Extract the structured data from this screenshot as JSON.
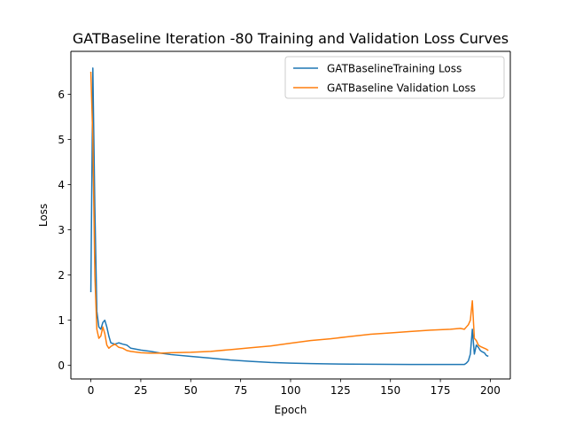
{
  "chart_data": {
    "type": "line",
    "title": "GATBaseline Iteration -80 Training and Validation Loss Curves",
    "xlabel": "Epoch",
    "ylabel": "Loss",
    "xlim": [
      -10,
      210
    ],
    "ylim": [
      -0.3,
      6.95
    ],
    "xticks": [
      0,
      25,
      50,
      75,
      100,
      125,
      150,
      175,
      200
    ],
    "yticks": [
      0,
      1,
      2,
      3,
      4,
      5,
      6
    ],
    "grid": false,
    "legend_position": "top-right",
    "series": [
      {
        "name": "GATBaselineTraining Loss",
        "color": "#1f77b4",
        "x": [
          0,
          1,
          2,
          3,
          4,
          5,
          6,
          7,
          8,
          9,
          10,
          12,
          14,
          16,
          18,
          20,
          25,
          30,
          35,
          40,
          50,
          60,
          70,
          80,
          90,
          100,
          110,
          120,
          130,
          140,
          150,
          160,
          170,
          180,
          187,
          188,
          189,
          190,
          191,
          192,
          193,
          194,
          195,
          196,
          197,
          198,
          199
        ],
        "y": [
          1.62,
          6.58,
          3.5,
          1.2,
          0.85,
          0.8,
          0.95,
          1.0,
          0.85,
          0.65,
          0.5,
          0.47,
          0.5,
          0.47,
          0.45,
          0.38,
          0.34,
          0.31,
          0.27,
          0.24,
          0.2,
          0.16,
          0.12,
          0.09,
          0.065,
          0.05,
          0.04,
          0.033,
          0.028,
          0.025,
          0.023,
          0.022,
          0.021,
          0.02,
          0.02,
          0.05,
          0.1,
          0.25,
          0.8,
          0.25,
          0.45,
          0.4,
          0.33,
          0.3,
          0.28,
          0.22,
          0.2
        ]
      },
      {
        "name": "GATBaseline Validation Loss",
        "color": "#ff7f0e",
        "x": [
          0,
          1,
          2,
          3,
          4,
          5,
          6,
          7,
          8,
          9,
          10,
          12,
          14,
          16,
          18,
          20,
          25,
          30,
          35,
          40,
          50,
          60,
          70,
          80,
          90,
          100,
          110,
          120,
          130,
          140,
          150,
          160,
          170,
          180,
          185,
          187,
          188,
          189,
          190,
          191,
          192,
          193,
          194,
          195,
          196,
          197,
          198,
          199
        ],
        "y": [
          6.5,
          5.0,
          2.0,
          0.8,
          0.6,
          0.65,
          0.85,
          0.7,
          0.45,
          0.38,
          0.42,
          0.47,
          0.4,
          0.38,
          0.33,
          0.31,
          0.28,
          0.27,
          0.27,
          0.28,
          0.29,
          0.31,
          0.35,
          0.39,
          0.43,
          0.49,
          0.55,
          0.59,
          0.64,
          0.69,
          0.72,
          0.75,
          0.78,
          0.8,
          0.82,
          0.8,
          0.85,
          0.9,
          1.0,
          1.43,
          0.6,
          0.55,
          0.45,
          0.42,
          0.4,
          0.38,
          0.36,
          0.33
        ]
      }
    ]
  }
}
